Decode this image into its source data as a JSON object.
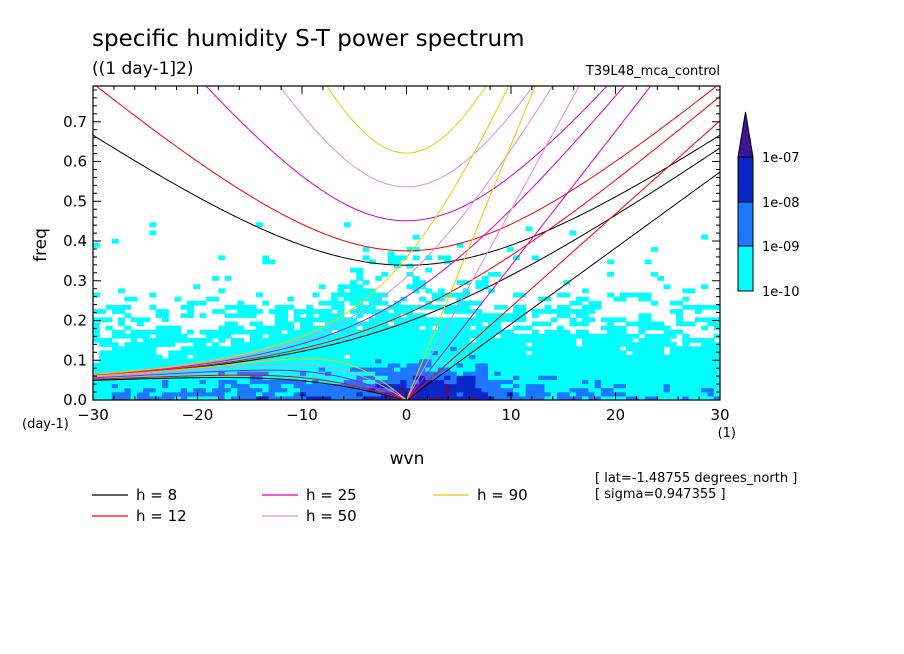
{
  "chart_data": {
    "type": "heatmap",
    "title": "specific humidity S-T power spectrum",
    "subtitle": "((1 day-1]2)",
    "run_label": "T39L48_mca_control",
    "xlabel": "wvn",
    "ylabel": "freq",
    "x_unit_label": "(1)",
    "y_unit_label": "(day-1)",
    "xlim": [
      -30,
      30
    ],
    "ylim": [
      0,
      0.79
    ],
    "x_ticks": [
      -30,
      -20,
      -10,
      0,
      10,
      20,
      30
    ],
    "x_tick_labels": [
      "−30",
      "−20",
      "−10",
      "0",
      "10",
      "20",
      "30"
    ],
    "y_ticks": [
      0,
      0.1,
      0.2,
      0.3,
      0.4,
      0.5,
      0.6,
      0.7
    ],
    "y_tick_labels": [
      "0.0",
      "0.1",
      "0.2",
      "0.3",
      "0.4",
      "0.5",
      "0.6",
      "0.7"
    ],
    "colorbar": {
      "levels": [
        "1e-10",
        "1e-09",
        "1e-08",
        "1e-07"
      ],
      "colors": [
        "#00ffff",
        "#1e78ff",
        "#0a28c8",
        "#3c1496"
      ]
    },
    "dispersion_curves": [
      {
        "label": "h =  8",
        "h": 8,
        "color": "#000000"
      },
      {
        "label": "h = 12",
        "h": 12,
        "color": "#ff0000"
      },
      {
        "label": "h = 25",
        "h": 25,
        "color": "#dd00bb"
      },
      {
        "label": "h = 50",
        "h": 50,
        "color": "#e08ce0"
      },
      {
        "label": "h = 90",
        "h": 90,
        "color": "#f0c800"
      }
    ],
    "annotations": [
      "[ lat=-1.48755 degrees_north ]",
      "[ sigma=0.947355 ]"
    ]
  }
}
